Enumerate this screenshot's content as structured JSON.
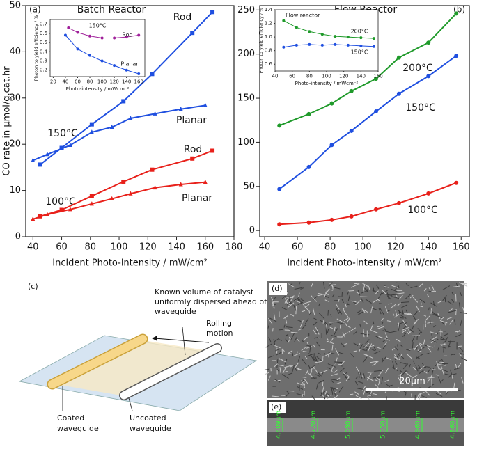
{
  "chart_data": [
    {
      "type": "line",
      "title": "Batch Reactor",
      "panel_label": "(a)",
      "xlabel": "Incident Photo-intensity / mW/cm²",
      "ylabel": "CO rate in μmol/g.cat.hr",
      "xlim": [
        35,
        180
      ],
      "xticks": [
        40,
        60,
        80,
        100,
        120,
        140,
        160,
        180
      ],
      "ylim": [
        0,
        50
      ],
      "yticks": [
        0,
        10,
        20,
        30,
        40,
        50
      ],
      "annotations": [
        "150°C",
        "100°C"
      ],
      "series": [
        {
          "name": "Rod",
          "color": "#1f4fe0",
          "marker": "square",
          "x": [
            45,
            60,
            81,
            103,
            123,
            151,
            165
          ],
          "values": [
            15.6,
            19.2,
            24.3,
            29.3,
            35.2,
            44.1,
            48.6
          ]
        },
        {
          "name": "Planar",
          "color": "#1f4fe0",
          "marker": "triangle",
          "x": [
            40,
            50,
            66,
            81,
            95,
            108,
            125,
            143,
            160
          ],
          "values": [
            16.5,
            17.8,
            19.8,
            22.6,
            23.7,
            25.6,
            26.6,
            27.6,
            28.4
          ]
        },
        {
          "name": "Rod",
          "color": "#e8201a",
          "marker": "square",
          "x": [
            45,
            60,
            81,
            103,
            123,
            151,
            165
          ],
          "values": [
            4.4,
            5.8,
            8.8,
            11.9,
            14.5,
            16.9,
            18.6
          ]
        },
        {
          "name": "Planar",
          "color": "#e8201a",
          "marker": "triangle",
          "x": [
            40,
            50,
            66,
            81,
            95,
            108,
            125,
            143,
            160
          ],
          "values": [
            3.8,
            4.8,
            5.9,
            7.1,
            8.2,
            9.3,
            10.6,
            11.3,
            11.8
          ]
        }
      ]
    },
    {
      "type": "line",
      "title": "150°C",
      "xlabel": "Photo-intensity / mWcm⁻²",
      "ylabel": "Photon to yield efficiency / %",
      "xlim": [
        15,
        170
      ],
      "xticks": [
        20,
        40,
        60,
        80,
        100,
        120,
        140,
        160
      ],
      "ylim": [
        0.13,
        0.75
      ],
      "yticks": [
        0.2,
        0.3,
        0.4,
        0.5,
        0.6,
        0.7
      ],
      "series": [
        {
          "name": "Rod",
          "color": "#a0209a",
          "marker": "circle",
          "x": [
            45,
            60,
            80,
            100,
            120,
            140,
            160
          ],
          "values": [
            0.66,
            0.61,
            0.57,
            0.55,
            0.55,
            0.56,
            0.58
          ]
        },
        {
          "name": "Planar",
          "color": "#1f4fe0",
          "marker": "circle",
          "x": [
            40,
            60,
            80,
            100,
            120,
            140,
            160
          ],
          "values": [
            0.58,
            0.43,
            0.36,
            0.3,
            0.25,
            0.2,
            0.16
          ]
        }
      ]
    },
    {
      "type": "line",
      "title": "Flow Reactor",
      "panel_label": "(b)",
      "xlabel": "Incident Photo-intensity / mW/cm²",
      "xlim": [
        37,
        165
      ],
      "xticks": [
        40,
        60,
        80,
        100,
        120,
        140,
        160
      ],
      "ylim": [
        -7,
        255
      ],
      "yticks": [
        0,
        50,
        100,
        150,
        200,
        250
      ],
      "series": [
        {
          "name": "200°C",
          "color": "#1f9a2a",
          "marker": "circle",
          "x": [
            49,
            67,
            81,
            93,
            108,
            122,
            140,
            157
          ],
          "values": [
            119,
            132,
            144,
            158,
            172,
            196,
            213,
            246
          ]
        },
        {
          "name": "150°C",
          "color": "#1f4fe0",
          "marker": "circle",
          "x": [
            49,
            67,
            81,
            93,
            108,
            122,
            140,
            157
          ],
          "values": [
            47,
            72,
            97,
            113,
            135,
            155,
            175,
            198
          ]
        },
        {
          "name": "100°C",
          "color": "#e8201a",
          "marker": "circle",
          "x": [
            49,
            67,
            81,
            93,
            108,
            122,
            140,
            157
          ],
          "values": [
            7,
            9,
            12,
            16,
            24,
            31,
            42,
            54
          ]
        }
      ]
    },
    {
      "type": "line",
      "title": "Flow reactor",
      "xlabel": "Photo-intensity / mWcm⁻²",
      "ylabel": "Photon to yield efficiency / %",
      "xlim": [
        40,
        160
      ],
      "xticks": [
        40,
        60,
        80,
        100,
        120,
        140,
        160
      ],
      "ylim": [
        0.5,
        1.4
      ],
      "yticks": [
        {
          "value": 0.6,
          "label": "0.6"
        },
        {
          "value": 0.8,
          "label": "0.8"
        },
        {
          "value": 1,
          "label": "1.0"
        },
        {
          "value": 1.2,
          "label": "1.2"
        },
        {
          "value": 1.4,
          "label": "1.4"
        }
      ],
      "series": [
        {
          "name": "200°C",
          "color": "#1f9a2a",
          "marker": "circle",
          "x": [
            50,
            65,
            80,
            95,
            110,
            125,
            140,
            155
          ],
          "values": [
            1.24,
            1.14,
            1.08,
            1.04,
            1.01,
            1.0,
            0.99,
            0.98
          ]
        },
        {
          "name": "150°C",
          "color": "#1f4fe0",
          "marker": "circle",
          "x": [
            50,
            65,
            80,
            95,
            110,
            125,
            140,
            155
          ],
          "values": [
            0.85,
            0.88,
            0.89,
            0.88,
            0.89,
            0.88,
            0.87,
            0.86
          ]
        }
      ]
    }
  ],
  "panel_c": {
    "label": "(c)",
    "callout": [
      "Known volume of catalyst",
      "uniformly dispersed ahead of",
      "waveguide"
    ],
    "rolling": [
      "Rolling",
      "motion"
    ],
    "coated": [
      "Coated",
      "waveguide"
    ],
    "uncoated": [
      "Uncoated",
      "waveguide"
    ]
  },
  "panel_d": {
    "label": "(d)",
    "scale_bar": "20μm"
  },
  "panel_e": {
    "label": "(e)",
    "measurements": [
      "4.409μm",
      "4.720μm",
      "5.090μm",
      "5.350μm",
      "4.960μm",
      "4.860μm"
    ]
  }
}
